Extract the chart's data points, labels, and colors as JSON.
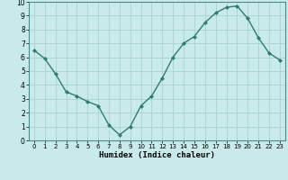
{
  "x": [
    0,
    1,
    2,
    3,
    4,
    5,
    6,
    7,
    8,
    9,
    10,
    11,
    12,
    13,
    14,
    15,
    16,
    17,
    18,
    19,
    20,
    21,
    22,
    23
  ],
  "y": [
    6.5,
    5.9,
    4.8,
    3.5,
    3.2,
    2.8,
    2.5,
    1.1,
    0.4,
    1.0,
    2.5,
    3.2,
    4.5,
    6.0,
    7.0,
    7.5,
    8.5,
    9.2,
    9.6,
    9.7,
    8.8,
    7.4,
    6.3,
    5.8
  ],
  "xlabel": "Humidex (Indice chaleur)",
  "xlim": [
    -0.5,
    23.5
  ],
  "ylim": [
    0,
    10
  ],
  "line_color": "#2e7d6e",
  "marker_color": "#2e7d6e",
  "bg_color": "#c8eaea",
  "grid_color": "#b0d4d4",
  "xticks": [
    0,
    1,
    2,
    3,
    4,
    5,
    6,
    7,
    8,
    9,
    10,
    11,
    12,
    13,
    14,
    15,
    16,
    17,
    18,
    19,
    20,
    21,
    22,
    23
  ],
  "yticks": [
    0,
    1,
    2,
    3,
    4,
    5,
    6,
    7,
    8,
    9,
    10
  ]
}
